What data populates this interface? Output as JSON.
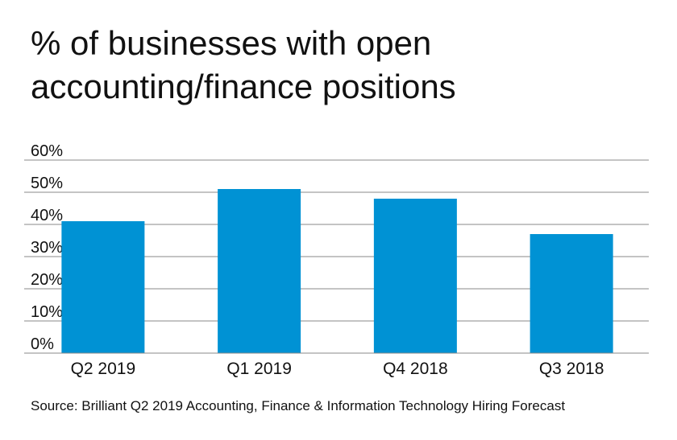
{
  "chart_data": {
    "type": "bar",
    "title_lines": [
      "% of businesses with open",
      "accounting/finance positions"
    ],
    "categories": [
      "Q2 2019",
      "Q1 2019",
      "Q4 2018",
      "Q3 2018"
    ],
    "values": [
      41,
      51,
      48,
      37
    ],
    "ylim": [
      0,
      60
    ],
    "y_ticks": [
      {
        "value": 0,
        "label": "0%"
      },
      {
        "value": 10,
        "label": "10%"
      },
      {
        "value": 20,
        "label": "20%"
      },
      {
        "value": 30,
        "label": "30%"
      },
      {
        "value": 40,
        "label": "40%"
      },
      {
        "value": 50,
        "label": "50%"
      },
      {
        "value": 60,
        "label": "60%"
      }
    ],
    "grid": true,
    "xlabel": "",
    "ylabel": "",
    "source": "Source: Brilliant Q2 2019 Accounting, Finance & Information Technology Hiring Forecast",
    "colors": {
      "bar": "#0092d4",
      "grid": "#888888",
      "text": "#111111"
    }
  }
}
